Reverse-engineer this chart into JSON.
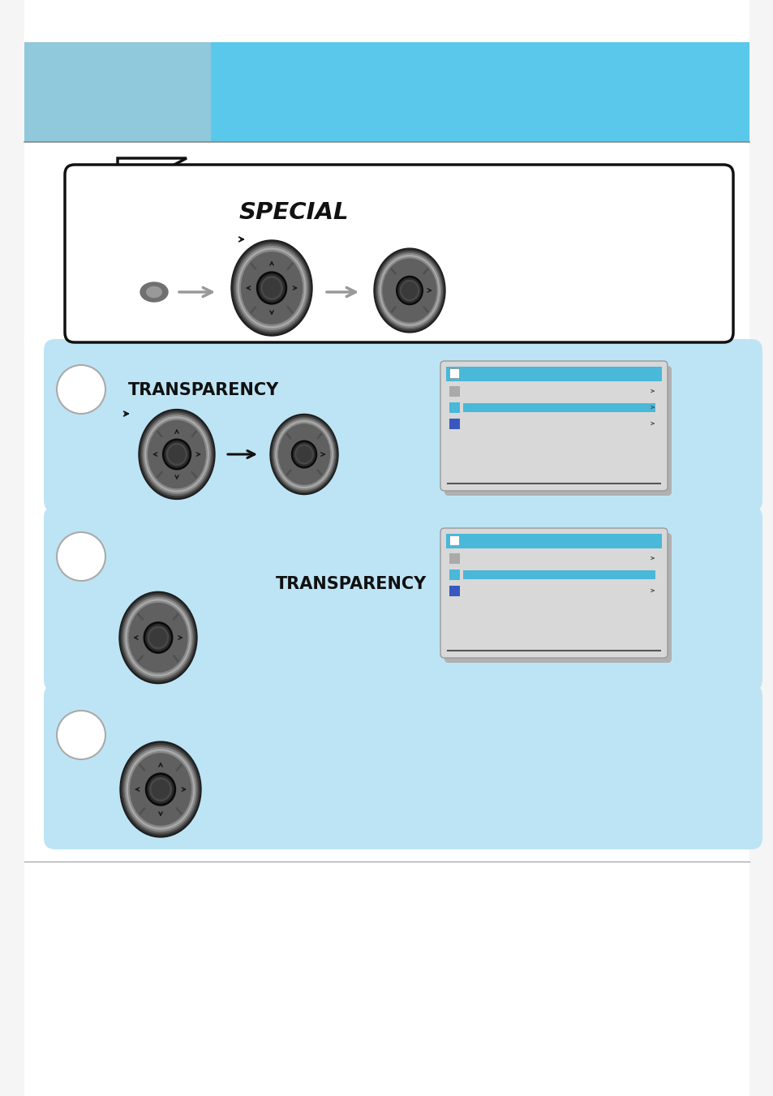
{
  "bg_color": "#f5f5f5",
  "page_bg": "#ffffff",
  "header_blue": "#5ac8ea",
  "header_left_blue": "#90c8dc",
  "step_blue": "#bde4f4",
  "knob_layers": [
    "#1e1e1e",
    "#3a3a3a",
    "#606060",
    "#888888",
    "#aaaaaa",
    "#888888",
    "#606060"
  ],
  "center_layers": [
    "#0a0a0a",
    "#2a2a2a",
    "#484848",
    "#3a3a3a"
  ],
  "arrow_gray": "#999999",
  "arrow_black": "#111111",
  "panel_bg": "#d8d8d8",
  "panel_shadow": "#b0b0b0",
  "panel_blue": "#4ab8d8",
  "panel_icon_gray": "#aaaaaa",
  "panel_icon_blue": "#4ab8d8",
  "panel_icon_star": "#3858c0",
  "bubble_edge": "#111111",
  "sep_line": "#aaaaaa",
  "circle_edge": "#aaaaaa",
  "special_text": "SPECIAL",
  "transp_text": "TRANSPARENCY"
}
